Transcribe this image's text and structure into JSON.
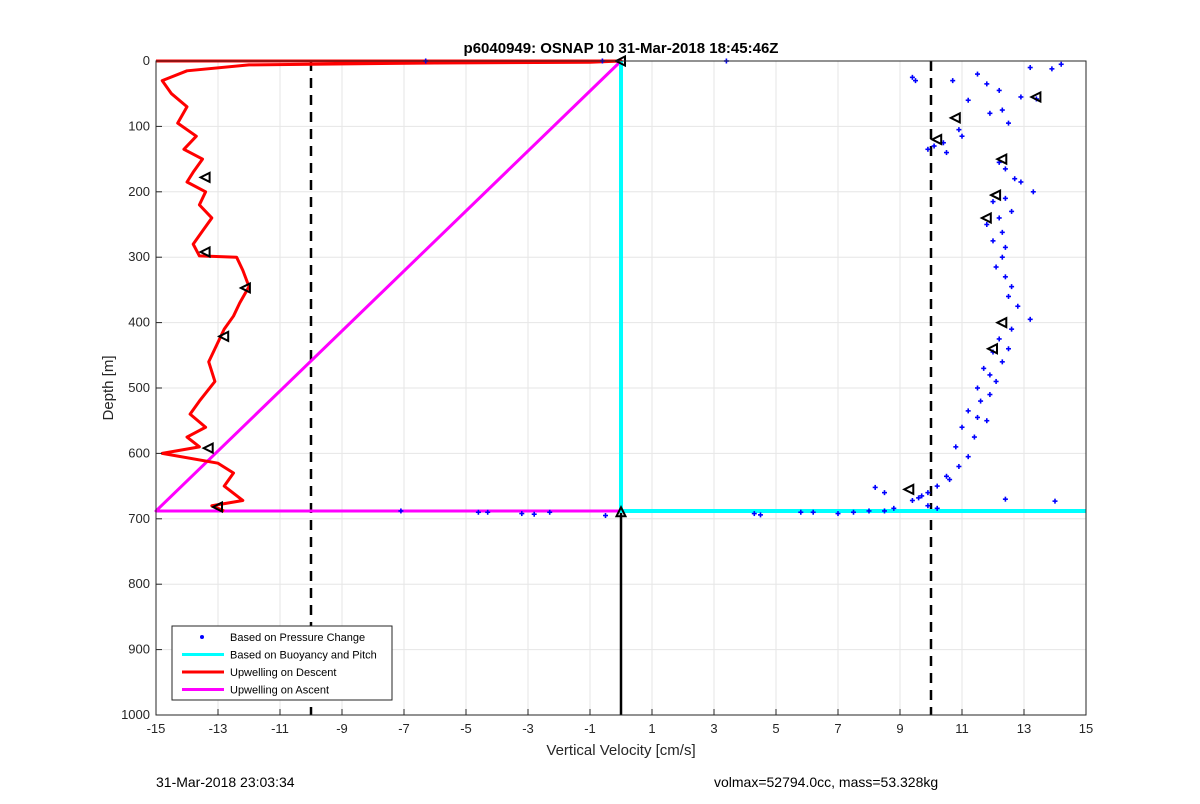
{
  "chart_data": {
    "type": "scatter",
    "title": "p6040949: OSNAP 10 31-Mar-2018 18:45:46Z",
    "xlabel": "Vertical Velocity [cm/s]",
    "ylabel": "Depth [m]",
    "xlim": [
      -15,
      15
    ],
    "ylim": [
      0,
      1000
    ],
    "y_reversed": true,
    "grid": true,
    "x_ticks": [
      -15,
      -13,
      -11,
      -9,
      -7,
      -5,
      -3,
      -1,
      1,
      3,
      5,
      7,
      9,
      11,
      13,
      15
    ],
    "y_ticks": [
      0,
      100,
      200,
      300,
      400,
      500,
      600,
      700,
      800,
      900,
      1000
    ],
    "legend_position": "bottom-left",
    "legend": [
      {
        "label": "Based on Pressure Change",
        "color": "#0000ff",
        "marker": "dot"
      },
      {
        "label": "Based on Buoyancy and Pitch",
        "color": "#00ffff",
        "marker": "line"
      },
      {
        "label": "Upwelling on Descent",
        "color": "#ff0000",
        "marker": "line"
      },
      {
        "label": "Upwelling on Ascent",
        "color": "#ff00ff",
        "marker": "line"
      }
    ],
    "reference_lines": {
      "vertical_dashed_x": [
        -10,
        10
      ],
      "vertical_solid_x": 0
    },
    "series": [
      {
        "name": "Based on Pressure Change",
        "style": "dots",
        "color": "#0000ff",
        "points": [
          [
            14.2,
            5
          ],
          [
            13.9,
            12
          ],
          [
            13.2,
            10
          ],
          [
            13.4,
            58
          ],
          [
            12.9,
            55
          ],
          [
            11.5,
            20
          ],
          [
            11.8,
            35
          ],
          [
            12.2,
            45
          ],
          [
            10.7,
            30
          ],
          [
            9.4,
            25
          ],
          [
            9.5,
            30
          ],
          [
            11.2,
            60
          ],
          [
            11.9,
            80
          ],
          [
            12.5,
            95
          ],
          [
            12.3,
            75
          ],
          [
            10.9,
            105
          ],
          [
            11,
            115
          ],
          [
            10.4,
            125
          ],
          [
            10.1,
            130
          ],
          [
            10.5,
            140
          ],
          [
            9.9,
            135
          ],
          [
            12.2,
            155
          ],
          [
            12.4,
            165
          ],
          [
            12.7,
            180
          ],
          [
            12.9,
            185
          ],
          [
            13.3,
            200
          ],
          [
            12.4,
            210
          ],
          [
            12,
            215
          ],
          [
            12.6,
            230
          ],
          [
            12.2,
            240
          ],
          [
            11.8,
            250
          ],
          [
            12.3,
            262
          ],
          [
            12,
            275
          ],
          [
            12.4,
            285
          ],
          [
            12.3,
            300
          ],
          [
            12.1,
            315
          ],
          [
            12.4,
            330
          ],
          [
            12.6,
            345
          ],
          [
            12.5,
            360
          ],
          [
            12.8,
            375
          ],
          [
            13.2,
            395
          ],
          [
            12.6,
            410
          ],
          [
            12.2,
            425
          ],
          [
            12,
            445
          ],
          [
            11.7,
            470
          ],
          [
            11.9,
            480
          ],
          [
            11.5,
            500
          ],
          [
            11.6,
            520
          ],
          [
            11.2,
            535
          ],
          [
            11.8,
            550
          ],
          [
            11,
            560
          ],
          [
            11.4,
            575
          ],
          [
            10.8,
            590
          ],
          [
            11.2,
            605
          ],
          [
            10.9,
            620
          ],
          [
            10.5,
            635
          ],
          [
            10.2,
            650
          ],
          [
            9.9,
            660
          ],
          [
            9.6,
            668
          ],
          [
            9.4,
            672
          ],
          [
            9.9,
            680
          ],
          [
            10.2,
            684
          ],
          [
            12.4,
            670
          ],
          [
            14,
            673
          ],
          [
            8.5,
            660
          ],
          [
            8.2,
            652
          ],
          [
            8.8,
            684
          ],
          [
            8.5,
            688
          ],
          [
            8,
            688
          ],
          [
            7.5,
            690
          ],
          [
            7,
            692
          ],
          [
            6.2,
            690
          ],
          [
            5.8,
            690
          ],
          [
            4.5,
            694
          ],
          [
            4.3,
            692
          ],
          [
            3.4,
            0
          ],
          [
            -0.6,
            0
          ],
          [
            -6.3,
            0
          ],
          [
            -7.1,
            688
          ],
          [
            -4.6,
            690
          ],
          [
            -4.3,
            690
          ],
          [
            -3.2,
            692
          ],
          [
            -2.8,
            693
          ],
          [
            -2.3,
            690
          ],
          [
            -0.5,
            695
          ],
          [
            9.7,
            665
          ],
          [
            10.6,
            640
          ],
          [
            11.5,
            545
          ],
          [
            11.9,
            510
          ],
          [
            12.1,
            490
          ],
          [
            12.3,
            460
          ],
          [
            12.5,
            440
          ]
        ]
      },
      {
        "name": "Based on Buoyancy and Pitch",
        "style": "line",
        "color": "#00ffff",
        "points": [
          [
            0,
            0
          ],
          [
            0,
            688
          ],
          [
            15,
            688
          ]
        ]
      },
      {
        "name": "Upwelling on Descent",
        "style": "line",
        "color": "#ff0000",
        "points": [
          [
            -15,
            0
          ],
          [
            -13.5,
            0
          ],
          [
            0,
            0
          ],
          [
            -1,
            2
          ],
          [
            -6,
            3
          ],
          [
            -12,
            6
          ],
          [
            -14,
            15
          ],
          [
            -14.8,
            30
          ],
          [
            -14.5,
            50
          ],
          [
            -14,
            70
          ],
          [
            -14.3,
            95
          ],
          [
            -13.7,
            115
          ],
          [
            -14.1,
            135
          ],
          [
            -13.5,
            150
          ],
          [
            -13.8,
            170
          ],
          [
            -14,
            185
          ],
          [
            -13.4,
            200
          ],
          [
            -13.6,
            220
          ],
          [
            -13.2,
            240
          ],
          [
            -13.5,
            260
          ],
          [
            -13.8,
            280
          ],
          [
            -13.6,
            298
          ],
          [
            -12.4,
            300
          ],
          [
            -12.2,
            320
          ],
          [
            -12,
            345
          ],
          [
            -12.3,
            370
          ],
          [
            -12.5,
            390
          ],
          [
            -12.8,
            410
          ],
          [
            -13,
            430
          ],
          [
            -13.3,
            460
          ],
          [
            -13.1,
            490
          ],
          [
            -13.6,
            520
          ],
          [
            -13.9,
            540
          ],
          [
            -13.4,
            560
          ],
          [
            -14,
            575
          ],
          [
            -13.6,
            590
          ],
          [
            -14.8,
            600
          ],
          [
            -13,
            615
          ],
          [
            -12.5,
            630
          ],
          [
            -12.8,
            650
          ],
          [
            -12.2,
            672
          ],
          [
            -13.2,
            680
          ],
          [
            -12.8,
            688
          ]
        ]
      },
      {
        "name": "Upwelling on Ascent",
        "style": "line",
        "color": "#ff00ff",
        "points": [
          [
            -15,
            0
          ],
          [
            0,
            0
          ],
          [
            -15,
            688
          ],
          [
            0,
            688
          ]
        ]
      }
    ],
    "markers_triangles": [
      [
        0,
        0
      ],
      [
        13.4,
        55
      ],
      [
        10.8,
        87
      ],
      [
        10.2,
        120
      ],
      [
        12.3,
        150
      ],
      [
        12.1,
        205
      ],
      [
        11.8,
        240
      ],
      [
        12.3,
        400
      ],
      [
        12,
        440
      ],
      [
        9.3,
        655
      ],
      [
        0,
        690
      ],
      [
        -13.4,
        178
      ],
      [
        -13.4,
        292
      ],
      [
        -12.1,
        347
      ],
      [
        -12.8,
        421
      ],
      [
        -13.3,
        592
      ],
      [
        -13,
        682
      ]
    ]
  },
  "footer": {
    "timestamp": "31-Mar-2018 23:03:34",
    "info": "volmax=52794.0cc, mass=53.328kg"
  }
}
